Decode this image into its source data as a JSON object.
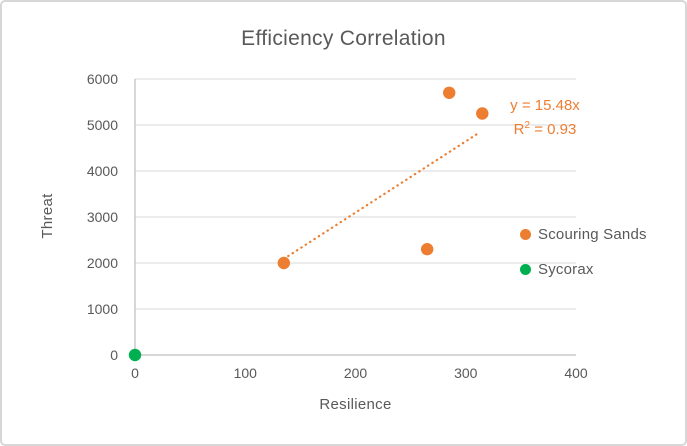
{
  "colors": {
    "text": "#595959",
    "gridline": "#D9D9D9",
    "axis_line": "#BFBFBF",
    "frame_border": "#D7D7D7",
    "background": "#FFFFFF"
  },
  "chart_data": {
    "type": "scatter",
    "title": "Efficiency Correlation",
    "xlabel": "Resilience",
    "ylabel": "Threat",
    "xlim": [
      0,
      400
    ],
    "ylim": [
      0,
      6000
    ],
    "x_ticks": [
      0,
      100,
      200,
      300,
      400
    ],
    "y_ticks": [
      0,
      1000,
      2000,
      3000,
      4000,
      5000,
      6000
    ],
    "grid": "horizontal",
    "legend_position": "right",
    "series": [
      {
        "name": "Scouring Sands",
        "color": "#ED7D31",
        "points": [
          [
            135,
            2000
          ],
          [
            265,
            2300
          ],
          [
            285,
            5700
          ],
          [
            315,
            5250
          ]
        ]
      },
      {
        "name": "Sycorax",
        "color": "#00B050",
        "points": [
          [
            0,
            0
          ]
        ]
      }
    ],
    "trendline": {
      "series": "Scouring Sands",
      "equation": "y = 15.48x",
      "r2_prefix": "R",
      "r2_sup": "2",
      "r2_suffix": " = 0.93",
      "slope": 15.48,
      "x_start": 135,
      "x_end": 313,
      "color": "#ED7D31",
      "style": "dotted"
    }
  }
}
